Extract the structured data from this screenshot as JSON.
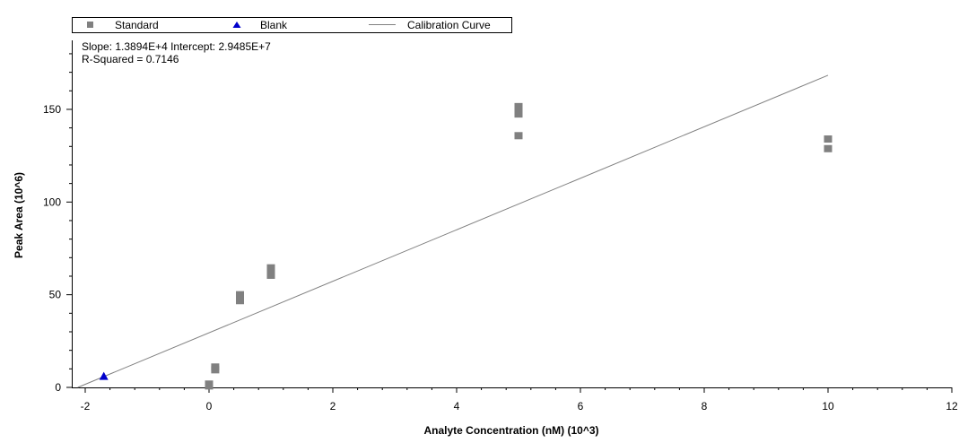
{
  "chart_data": {
    "type": "scatter",
    "xlabel": "Analyte Concentration (nM) (10^3)",
    "ylabel": "Peak Area (10^6)",
    "xlim": [
      -2.2,
      12
    ],
    "ylim": [
      0,
      188
    ],
    "x_ticks": [
      -2,
      0,
      2,
      4,
      6,
      8,
      10,
      12
    ],
    "y_ticks": [
      0,
      50,
      100,
      150
    ],
    "grid": false,
    "legend_position": "top",
    "legend": [
      {
        "label": "Standard",
        "marker": "square",
        "color": "#808080"
      },
      {
        "label": "Blank",
        "marker": "triangle",
        "color": "#0000cc"
      },
      {
        "label": "Calibration Curve",
        "marker": "line",
        "color": "#808080"
      }
    ],
    "annotations": [
      "Slope: 1.3894E+4 Intercept: 2.9485E+7",
      "R-Squared = 0.7146"
    ],
    "series": [
      {
        "name": "Standard",
        "points": [
          {
            "x": 0,
            "y": 0.8
          },
          {
            "x": 0,
            "y": 1.8
          },
          {
            "x": 0.1,
            "y": 9.5
          },
          {
            "x": 0.1,
            "y": 11.0
          },
          {
            "x": 0.5,
            "y": 46.8
          },
          {
            "x": 0.5,
            "y": 48.5
          },
          {
            "x": 0.5,
            "y": 50.0
          },
          {
            "x": 1,
            "y": 60.5
          },
          {
            "x": 1,
            "y": 62.5
          },
          {
            "x": 1,
            "y": 64.5
          },
          {
            "x": 5,
            "y": 135.8
          },
          {
            "x": 5,
            "y": 147.5
          },
          {
            "x": 5,
            "y": 149.5
          },
          {
            "x": 5,
            "y": 151.5
          },
          {
            "x": 10,
            "y": 128.8
          },
          {
            "x": 10,
            "y": 134.0
          }
        ]
      },
      {
        "name": "Blank",
        "points": [
          {
            "x": -1.7,
            "y": 6.0
          }
        ]
      },
      {
        "name": "Calibration Curve",
        "line": [
          {
            "x": -2.12,
            "y": 0
          },
          {
            "x": 10,
            "y": 168.4
          }
        ]
      }
    ]
  }
}
